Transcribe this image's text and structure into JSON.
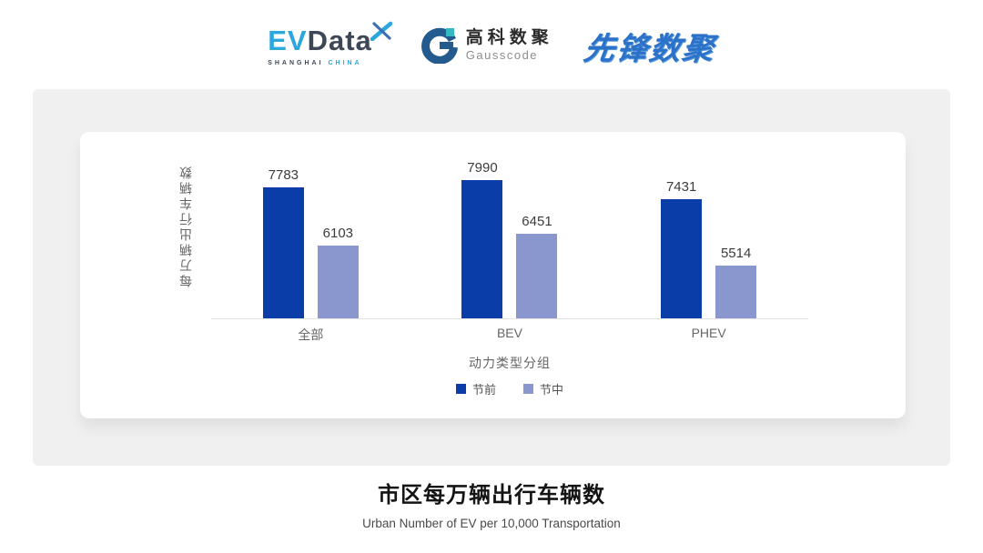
{
  "header": {
    "evdata": {
      "ev": "EV",
      "data": "Data",
      "sub_left": "SHANGHAI",
      "sub_right": "CHINA"
    },
    "gausscode": {
      "cn": "高科数聚",
      "en": "Gausscode"
    },
    "xianfeng": {
      "text": "先锋数聚"
    }
  },
  "chart_data": {
    "type": "bar",
    "title": "市区每万辆出行车辆数",
    "subtitle": "Urban Number of EV per 10,000 Transportation",
    "xlabel": "动力类型分组",
    "ylabel": "每万辆出行车辆数",
    "categories": [
      "全部",
      "BEV",
      "PHEV"
    ],
    "series": [
      {
        "name": "节前",
        "color": "#0A3DA8",
        "values": [
          7783,
          7990,
          7431
        ]
      },
      {
        "name": "节中",
        "color": "#8A96CE",
        "values": [
          6103,
          6451,
          5514
        ]
      }
    ],
    "ylim": [
      4000,
      8200
    ],
    "grid": false,
    "legend_position": "bottom"
  },
  "footer": {
    "title": "市区每万辆出行车辆数",
    "subtitle": "Urban Number of EV per 10,000 Transportation"
  }
}
